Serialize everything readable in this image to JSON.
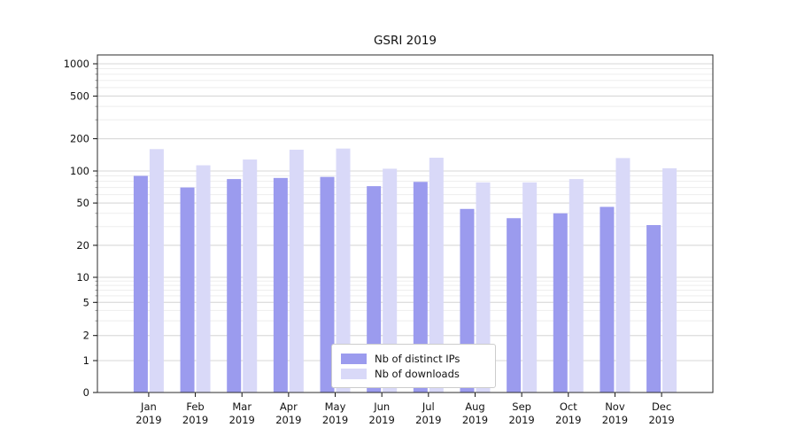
{
  "chart_data": {
    "type": "bar",
    "title": "GSRI 2019",
    "yscale": "symlog",
    "grid": "horizontal",
    "legend_position": "bottom-center",
    "categories": [
      "Jan",
      "Feb",
      "Mar",
      "Apr",
      "May",
      "Jun",
      "Jul",
      "Aug",
      "Sep",
      "Oct",
      "Nov",
      "Dec"
    ],
    "category_year": "2019",
    "yticks": [
      0,
      1,
      2,
      5,
      10,
      20,
      50,
      100,
      200,
      500,
      1000
    ],
    "ylim": [
      0,
      1300
    ],
    "series": [
      {
        "name": "Nb of distinct IPs",
        "color": "#9b9bee",
        "values": [
          90,
          70,
          84,
          86,
          88,
          72,
          79,
          44,
          36,
          40,
          46,
          31
        ]
      },
      {
        "name": "Nb of downloads",
        "color": "#d9d9f8",
        "values": [
          160,
          113,
          128,
          158,
          162,
          105,
          133,
          78,
          78,
          84,
          132,
          106
        ]
      }
    ]
  }
}
